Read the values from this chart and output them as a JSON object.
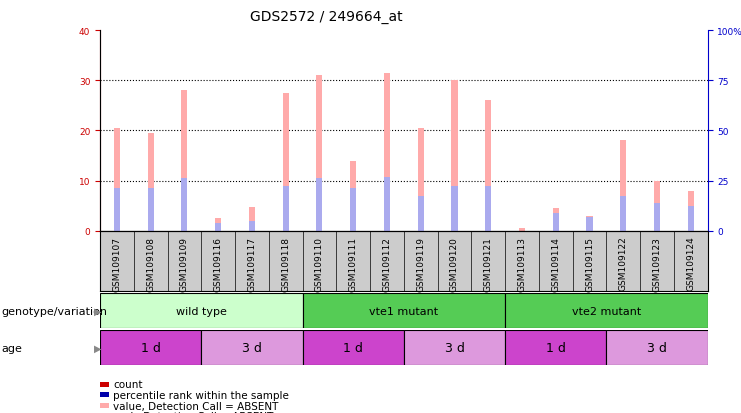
{
  "title": "GDS2572 / 249664_at",
  "samples": [
    "GSM109107",
    "GSM109108",
    "GSM109109",
    "GSM109116",
    "GSM109117",
    "GSM109118",
    "GSM109110",
    "GSM109111",
    "GSM109112",
    "GSM109119",
    "GSM109120",
    "GSM109121",
    "GSM109113",
    "GSM109114",
    "GSM109115",
    "GSM109122",
    "GSM109123",
    "GSM109124"
  ],
  "pink_bars": [
    20.5,
    19.5,
    28.0,
    2.5,
    4.8,
    27.5,
    31.0,
    14.0,
    31.5,
    20.5,
    30.0,
    26.0,
    0.5,
    4.5,
    3.0,
    18.0,
    10.0,
    8.0
  ],
  "blue_bars": [
    8.5,
    8.5,
    10.5,
    1.5,
    2.0,
    9.0,
    10.5,
    8.5,
    10.8,
    7.0,
    9.0,
    9.0,
    0.0,
    3.5,
    2.8,
    7.0,
    5.5,
    5.0
  ],
  "ylim_left": [
    0,
    40
  ],
  "ylim_right": [
    0,
    100
  ],
  "yticks_left": [
    0,
    10,
    20,
    30,
    40
  ],
  "yticks_right": [
    0,
    25,
    50,
    75,
    100
  ],
  "ylabel_left_color": "#cc0000",
  "ylabel_right_color": "#0000cc",
  "bar_pink_color": "#ffaaaa",
  "bar_blue_color": "#aaaaee",
  "genotype_groups": [
    {
      "label": "wild type",
      "start": 0,
      "end": 6,
      "color": "#ccffcc"
    },
    {
      "label": "vte1 mutant",
      "start": 6,
      "end": 12,
      "color": "#55cc55"
    },
    {
      "label": "vte2 mutant",
      "start": 12,
      "end": 18,
      "color": "#55cc55"
    }
  ],
  "age_groups": [
    {
      "label": "1 d",
      "start": 0,
      "end": 3,
      "color": "#cc44cc"
    },
    {
      "label": "3 d",
      "start": 3,
      "end": 6,
      "color": "#dd99dd"
    },
    {
      "label": "1 d",
      "start": 6,
      "end": 9,
      "color": "#cc44cc"
    },
    {
      "label": "3 d",
      "start": 9,
      "end": 12,
      "color": "#dd99dd"
    },
    {
      "label": "1 d",
      "start": 12,
      "end": 15,
      "color": "#cc44cc"
    },
    {
      "label": "3 d",
      "start": 15,
      "end": 18,
      "color": "#dd99dd"
    }
  ],
  "legend_items": [
    {
      "color": "#cc0000",
      "label": "count"
    },
    {
      "color": "#0000aa",
      "label": "percentile rank within the sample"
    },
    {
      "color": "#ffaaaa",
      "label": "value, Detection Call = ABSENT"
    },
    {
      "color": "#aaaaee",
      "label": "rank, Detection Call = ABSENT"
    }
  ],
  "bg_color": "#ffffff",
  "tick_label_bg": "#cccccc",
  "title_fontsize": 10,
  "tick_fontsize": 6.5,
  "label_fontsize": 8
}
